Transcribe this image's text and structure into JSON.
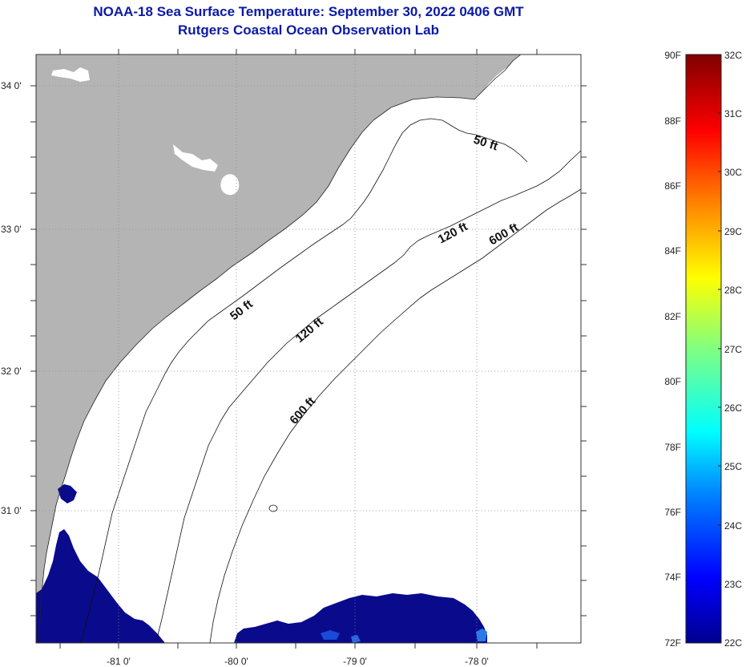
{
  "title": {
    "line1": "NOAA-18 Sea Surface Temperature:  September 30, 2022 0406 GMT",
    "line2": "Rutgers Coastal Ocean Observation Lab"
  },
  "map": {
    "lat_labels": [
      "34 0'",
      "33 0'",
      "32 0'",
      "31 0'"
    ],
    "lon_labels": [
      "-81 0'",
      "-80 0'",
      "-79 0'",
      "-78 0'"
    ],
    "contour_labels": {
      "c50_north": "50 ft",
      "c50_south": "50 ft",
      "c120_north": "120 ft",
      "c120_south": "120 ft",
      "c600_north": "600 ft",
      "c600_south": "600 ft"
    },
    "colors": {
      "land": "#b4b4b4",
      "sea_no_data": "#ffffff",
      "sst_cold": "#0a0a8c"
    }
  },
  "colorbar": {
    "fahrenheit": [
      "90F",
      "88F",
      "86F",
      "84F",
      "82F",
      "80F",
      "78F",
      "76F",
      "74F",
      "72F"
    ],
    "celsius": [
      "32C",
      "31C",
      "30C",
      "29C",
      "28C",
      "27C",
      "26C",
      "25C",
      "24C",
      "23C",
      "22C"
    ],
    "range_f": [
      72,
      90
    ],
    "range_c": [
      22,
      32
    ]
  }
}
